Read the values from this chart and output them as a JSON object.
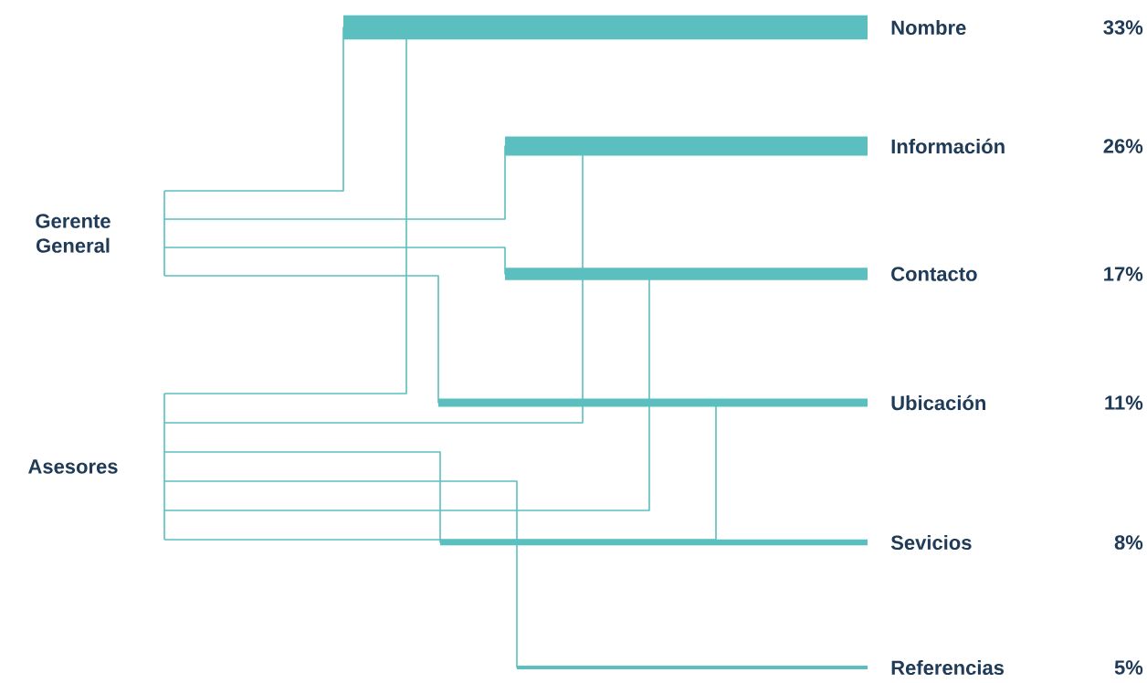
{
  "chart_data": {
    "type": "other",
    "categories": [
      "Nombre",
      "Información",
      "Contacto",
      "Ubicación",
      "Sevicios",
      "Referencias"
    ],
    "values": [
      33,
      26,
      17,
      11,
      8,
      5
    ],
    "value_labels": [
      "33%",
      "26%",
      "17%",
      "11%",
      "8%",
      "5%"
    ],
    "annotations": [
      "Gerente General",
      "Asesores"
    ],
    "color": "#5bbfbf"
  }
}
